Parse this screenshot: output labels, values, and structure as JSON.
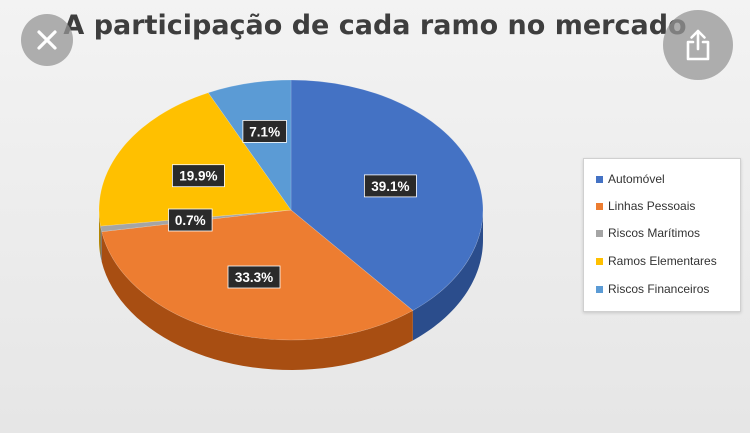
{
  "chart_data": {
    "type": "pie",
    "title": "A participação de cada ramo no mercado",
    "legend_position": "right",
    "slices": [
      {
        "label": "Automóvel",
        "value": 39.1,
        "value_label": "39.1%",
        "color": "#4472c4",
        "side_color": "#2b4d8c"
      },
      {
        "label": "Linhas Pessoais",
        "value": 33.3,
        "value_label": "33.3%",
        "color": "#ed7d31",
        "side_color": "#a84e12"
      },
      {
        "label": "Riscos Marítimos",
        "value": 0.7,
        "value_label": "0.7%",
        "color": "#a5a5a5",
        "side_color": "#6f6f6f"
      },
      {
        "label": "Ramos Elementares",
        "value": 19.9,
        "value_label": "19.9%",
        "color": "#ffc000",
        "side_color": "#b38600"
      },
      {
        "label": "Riscos Financeiros",
        "value": 7.1,
        "value_label": "7.1%",
        "color": "#5b9bd5",
        "side_color": "#3a6d9c"
      }
    ]
  },
  "overlay": {
    "close_icon": "close-icon",
    "share_icon": "share-icon"
  }
}
